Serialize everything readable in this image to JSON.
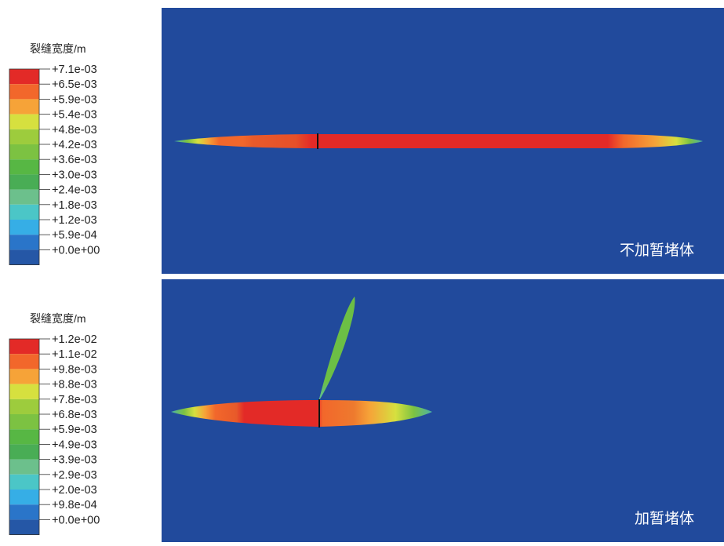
{
  "legend_top": {
    "title": "裂缝宽度/m",
    "colors": [
      "#e32a27",
      "#f2672b",
      "#f6a338",
      "#d6e03f",
      "#9dcc3d",
      "#7cc242",
      "#57b744",
      "#49ad55",
      "#6cc08c",
      "#4bc6c7",
      "#36aee6",
      "#2a75c9",
      "#2557a6"
    ],
    "labels": [
      "+7.1e-03",
      "+6.5e-03",
      "+5.9e-03",
      "+5.4e-03",
      "+4.8e-03",
      "+4.2e-03",
      "+3.6e-03",
      "+3.0e-03",
      "+2.4e-03",
      "+1.8e-03",
      "+1.2e-03",
      "+5.9e-04",
      "+0.0e+00"
    ]
  },
  "legend_bottom": {
    "title": "裂缝宽度/m",
    "colors": [
      "#e32a27",
      "#f2672b",
      "#f6a338",
      "#d6e03f",
      "#9dcc3d",
      "#7cc242",
      "#57b744",
      "#49ad55",
      "#6cc08c",
      "#4bc6c7",
      "#36aee6",
      "#2a75c9",
      "#2557a6"
    ],
    "labels": [
      "+1.2e-02",
      "+1.1e-02",
      "+9.8e-03",
      "+8.8e-03",
      "+7.8e-03",
      "+6.8e-03",
      "+5.9e-03",
      "+4.9e-03",
      "+3.9e-03",
      "+2.9e-03",
      "+2.0e-03",
      "+9.8e-04",
      "+0.0e+00"
    ]
  },
  "panel_top": {
    "caption": "不加暂堵体",
    "background": "#214a9c"
  },
  "panel_bottom": {
    "caption": "加暂堵体",
    "background": "#214a9c"
  }
}
